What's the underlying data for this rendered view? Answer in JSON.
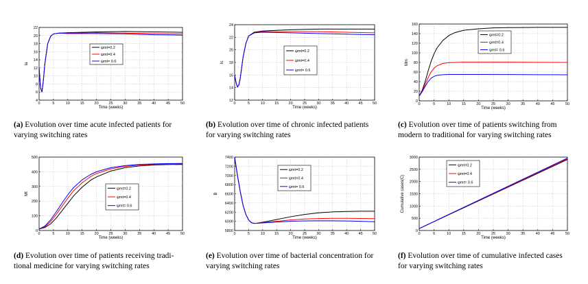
{
  "series_colors": [
    "#000000",
    "#ff0000",
    "#0000ff"
  ],
  "chart_data": [
    {
      "id": "a",
      "type": "line",
      "xlabel": "Time (weeks)",
      "ylabel": "Ia",
      "xlim": [
        0,
        50
      ],
      "ylim": [
        4,
        22
      ],
      "xticks": [
        0,
        5,
        10,
        15,
        20,
        25,
        30,
        35,
        40,
        45,
        50
      ],
      "yticks": [
        4,
        6,
        8,
        10,
        12,
        14,
        16,
        18,
        20,
        22
      ],
      "legend": [
        "ψmt=0.2",
        "ψmt=0.4",
        "ψmt= 0.6"
      ],
      "series": [
        {
          "name": "ψmt=0.2",
          "x": [
            0,
            0.5,
            1,
            1.5,
            2,
            3,
            4,
            5,
            7,
            10,
            20,
            30,
            40,
            50
          ],
          "y": [
            12,
            7,
            6,
            9,
            13,
            18,
            19.8,
            20.4,
            20.6,
            20.7,
            20.9,
            21.0,
            20.9,
            20.8
          ]
        },
        {
          "name": "ψmt=0.4",
          "x": [
            0,
            0.5,
            1,
            1.5,
            2,
            3,
            4,
            5,
            7,
            10,
            20,
            30,
            40,
            50
          ],
          "y": [
            12,
            7,
            6,
            9,
            13,
            18,
            19.8,
            20.4,
            20.6,
            20.6,
            20.7,
            20.6,
            20.5,
            20.4
          ]
        },
        {
          "name": "ψmt= 0.6",
          "x": [
            0,
            0.5,
            1,
            1.5,
            2,
            3,
            4,
            5,
            7,
            10,
            20,
            30,
            40,
            50
          ],
          "y": [
            12,
            7,
            6,
            9,
            13,
            18,
            19.8,
            20.4,
            20.6,
            20.5,
            20.5,
            20.4,
            20.2,
            20.1
          ]
        }
      ]
    },
    {
      "id": "b",
      "type": "line",
      "xlabel": "Time (weeks)",
      "ylabel": "Ic",
      "xlim": [
        0,
        50
      ],
      "ylim": [
        12,
        24
      ],
      "xticks": [
        0,
        5,
        10,
        15,
        20,
        25,
        30,
        35,
        40,
        45,
        50
      ],
      "yticks": [
        12,
        14,
        16,
        18,
        20,
        22,
        24
      ],
      "legend": [
        "ψmt=0.2",
        "ψmt=0.4",
        "ψmt= 0.6"
      ],
      "series": [
        {
          "name": "ψmt=0.2",
          "x": [
            0,
            0.5,
            1,
            1.5,
            2,
            3,
            4,
            5,
            7,
            10,
            20,
            30,
            40,
            50
          ],
          "y": [
            16,
            14.8,
            14.1,
            14.4,
            15.5,
            18.8,
            21,
            22.2,
            22.8,
            23.0,
            23.2,
            23.3,
            23.3,
            23.3
          ]
        },
        {
          "name": "ψmt=0.4",
          "x": [
            0,
            0.5,
            1,
            1.5,
            2,
            3,
            4,
            5,
            7,
            10,
            20,
            30,
            40,
            50
          ],
          "y": [
            16,
            14.8,
            14.1,
            14.4,
            15.5,
            18.8,
            21,
            22.2,
            22.7,
            22.9,
            22.9,
            22.9,
            22.8,
            22.7
          ]
        },
        {
          "name": "ψmt= 0.6",
          "x": [
            0,
            0.5,
            1,
            1.5,
            2,
            3,
            4,
            5,
            7,
            10,
            20,
            30,
            40,
            50
          ],
          "y": [
            16,
            14.8,
            14.1,
            14.4,
            15.5,
            18.8,
            21,
            22.2,
            22.7,
            22.8,
            22.7,
            22.6,
            22.5,
            22.4
          ]
        }
      ]
    },
    {
      "id": "c",
      "type": "line",
      "xlabel": "Time (weeks)",
      "ylabel": "Mm",
      "xlim": [
        0,
        50
      ],
      "ylim": [
        0,
        160
      ],
      "xticks": [
        0,
        5,
        10,
        15,
        20,
        25,
        30,
        35,
        40,
        45,
        50
      ],
      "yticks": [
        0,
        20,
        40,
        60,
        80,
        100,
        120,
        140,
        160
      ],
      "legend": [
        "ψmt=0.2",
        "ψmt=0.4",
        "ψmt= 0.6"
      ],
      "series": [
        {
          "name": "ψmt=0.2",
          "x": [
            0,
            1,
            2,
            3,
            4,
            5,
            6,
            8,
            10,
            12,
            15,
            20,
            25,
            30,
            40,
            50
          ],
          "y": [
            10,
            22,
            40,
            62,
            82,
            98,
            110,
            126,
            136,
            142,
            147,
            150,
            152,
            152.5,
            153,
            153
          ]
        },
        {
          "name": "ψmt=0.4",
          "x": [
            0,
            1,
            2,
            3,
            4,
            5,
            6,
            8,
            10,
            12,
            15,
            20,
            30,
            40,
            50
          ],
          "y": [
            10,
            20,
            34,
            48,
            60,
            68,
            73,
            78,
            79.5,
            80,
            80.5,
            80.5,
            80.5,
            80.2,
            80
          ]
        },
        {
          "name": "ψmt= 0.6",
          "x": [
            0,
            1,
            2,
            3,
            4,
            5,
            6,
            8,
            10,
            12,
            15,
            20,
            30,
            40,
            50
          ],
          "y": [
            10,
            19,
            30,
            40,
            47,
            51,
            53,
            54.5,
            55,
            55,
            55,
            55,
            54.8,
            54.5,
            54.2
          ]
        }
      ]
    },
    {
      "id": "d",
      "type": "line",
      "xlabel": "Time (weeks)",
      "ylabel": "Mt",
      "xlim": [
        0,
        50
      ],
      "ylim": [
        0,
        500
      ],
      "xticks": [
        0,
        5,
        10,
        15,
        20,
        25,
        30,
        35,
        40,
        45,
        50
      ],
      "yticks": [
        0,
        100,
        200,
        300,
        400,
        500
      ],
      "legend": [
        "ψmt=0.2",
        "ψmt=0.4",
        "ψmt= 0.6"
      ],
      "series": [
        {
          "name": "ψmt=0.2",
          "x": [
            0,
            2,
            4,
            6,
            8,
            10,
            12,
            15,
            18,
            20,
            25,
            30,
            35,
            40,
            45,
            50
          ],
          "y": [
            10,
            20,
            45,
            85,
            135,
            185,
            235,
            295,
            343,
            365,
            405,
            428,
            440,
            446,
            449,
            450
          ]
        },
        {
          "name": "ψmt=0.4",
          "x": [
            0,
            2,
            4,
            6,
            8,
            10,
            12,
            15,
            18,
            20,
            25,
            30,
            35,
            40,
            45,
            50
          ],
          "y": [
            10,
            25,
            60,
            110,
            165,
            220,
            270,
            325,
            368,
            388,
            420,
            437,
            446,
            450,
            452,
            453
          ]
        },
        {
          "name": "ψmt= 0.6",
          "x": [
            0,
            2,
            4,
            6,
            8,
            10,
            12,
            15,
            18,
            20,
            25,
            30,
            35,
            40,
            45,
            50
          ],
          "y": [
            10,
            30,
            72,
            128,
            187,
            243,
            292,
            345,
            382,
            400,
            428,
            442,
            450,
            454,
            456,
            457
          ]
        }
      ]
    },
    {
      "id": "e",
      "type": "line",
      "xlabel": "Time (weeks)",
      "ylabel": "B",
      "xlim": [
        0,
        50
      ],
      "ylim": [
        5800,
        7400
      ],
      "xticks": [
        0,
        5,
        10,
        15,
        20,
        25,
        30,
        35,
        40,
        45,
        50
      ],
      "yticks": [
        5800,
        6000,
        6200,
        6400,
        6600,
        6800,
        7000,
        7200,
        7400
      ],
      "legend": [
        "ψmt=0.2",
        "ψmt=0.4",
        "ψmt= 0.6"
      ],
      "series": [
        {
          "name": "ψmt=0.2",
          "x": [
            0,
            1,
            2,
            3,
            4,
            5,
            6,
            7,
            8,
            10,
            15,
            20,
            25,
            30,
            35,
            40,
            45,
            50
          ],
          "y": [
            7400,
            7000,
            6650,
            6350,
            6150,
            6030,
            5970,
            5955,
            5960,
            5980,
            6040,
            6100,
            6150,
            6185,
            6205,
            6215,
            6220,
            6220
          ]
        },
        {
          "name": "ψmt=0.4",
          "x": [
            0,
            1,
            2,
            3,
            4,
            5,
            6,
            7,
            8,
            10,
            15,
            20,
            25,
            30,
            35,
            40,
            45,
            50
          ],
          "y": [
            7400,
            7000,
            6650,
            6350,
            6150,
            6030,
            5970,
            5955,
            5958,
            5970,
            6000,
            6030,
            6050,
            6060,
            6065,
            6065,
            6062,
            6058
          ]
        },
        {
          "name": "ψmt= 0.6",
          "x": [
            0,
            1,
            2,
            3,
            4,
            5,
            6,
            7,
            8,
            10,
            15,
            20,
            25,
            30,
            35,
            40,
            45,
            50
          ],
          "y": [
            7400,
            7000,
            6650,
            6350,
            6150,
            6030,
            5970,
            5955,
            5957,
            5965,
            5985,
            6000,
            6010,
            6012,
            6012,
            6008,
            6000,
            5990
          ]
        }
      ]
    },
    {
      "id": "f",
      "type": "line",
      "xlabel": "Time (weeks)",
      "ylabel": "Cumulative cases(C)",
      "xlim": [
        0,
        50
      ],
      "ylim": [
        0,
        3000
      ],
      "xticks": [
        0,
        5,
        10,
        15,
        20,
        25,
        30,
        35,
        40,
        45,
        50
      ],
      "yticks": [
        0,
        500,
        1000,
        1500,
        2000,
        2500,
        3000
      ],
      "legend": [
        "ψmt=0.2",
        "ψmt=0.4",
        "ψmt= 0.6"
      ],
      "series": [
        {
          "name": "ψmt=0.2",
          "x": [
            0,
            50
          ],
          "y": [
            80,
            2900
          ]
        },
        {
          "name": "ψmt=0.4",
          "x": [
            0,
            50
          ],
          "y": [
            80,
            2930
          ]
        },
        {
          "name": "ψmt= 0.6",
          "x": [
            0,
            50
          ],
          "y": [
            80,
            2960
          ]
        }
      ]
    }
  ],
  "captions": [
    {
      "label": "(a)",
      "lines": [
        "Evolution over time acute infected patients for",
        "varying switching rates"
      ]
    },
    {
      "label": "(b)",
      "lines": [
        "Evolution over time of chronic infected patients",
        "for varying switching rates"
      ]
    },
    {
      "label": "(c)",
      "lines": [
        "Evolution over time of patients switching from",
        "modern to traditional for varying switching rates"
      ]
    },
    {
      "label": "(d)",
      "lines": [
        "Evolution over time of patients receiving tradi-",
        "tional medicine for varying switching rates"
      ]
    },
    {
      "label": "(e)",
      "lines": [
        "Evolution over time of bacterial concentration for",
        "varying switching rates"
      ]
    },
    {
      "label": "(f)",
      "lines": [
        "Evolution over time of cumulative infected cases",
        "for varying switching rates"
      ]
    }
  ]
}
